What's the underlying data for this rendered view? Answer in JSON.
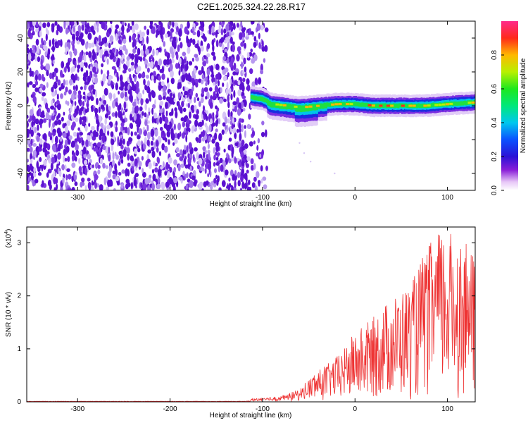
{
  "title": "C2E1.2025.324.22.28.R17",
  "colors": {
    "snr_line": "#ee3333",
    "frame": "#000000",
    "speckle_dark": "#6a1fd0",
    "speckle_light": "#c8b0f3"
  },
  "chart_data": [
    {
      "type": "heatmap",
      "name": "spectrogram",
      "xlabel": "Height of straight line (km)",
      "ylabel": "Frequency (Hz)",
      "xlim": [
        -355,
        130
      ],
      "ylim": [
        -50,
        50
      ],
      "xticks": [
        -300,
        -200,
        -100,
        0,
        100
      ],
      "yticks": [
        -40,
        -20,
        0,
        20,
        40
      ],
      "colorbar": {
        "label": "Normalized spectral amplitude",
        "range": [
          0,
          1
        ],
        "ticks": [
          "0.0",
          "0.2",
          "0.4",
          "0.6",
          "0.8"
        ],
        "colormap": "rainbow (white-magenta-blue-cyan-green-yellow-red-pink)"
      },
      "regions": [
        {
          "description": "noise speckle",
          "x_range": [
            -355,
            -95
          ],
          "freq_range": [
            -50,
            50
          ]
        },
        {
          "description": "signal band",
          "x_range": [
            -112,
            130
          ],
          "freq_range": [
            -10,
            8
          ]
        }
      ],
      "signal_centerline": [
        {
          "x": -112,
          "freq": 5
        },
        {
          "x": -100,
          "freq": 4
        },
        {
          "x": -90,
          "freq": 1
        },
        {
          "x": -75,
          "freq": 0
        },
        {
          "x": -60,
          "freq": -1
        },
        {
          "x": -40,
          "freq": 0
        },
        {
          "x": -20,
          "freq": 1
        },
        {
          "x": 0,
          "freq": 1
        },
        {
          "x": 20,
          "freq": 0
        },
        {
          "x": 50,
          "freq": 0
        },
        {
          "x": 75,
          "freq": 0
        },
        {
          "x": 100,
          "freq": 1
        },
        {
          "x": 130,
          "freq": 2
        }
      ]
    },
    {
      "type": "line",
      "name": "snr",
      "xlabel": "Height of straight line (km)",
      "ylabel": "SNR (10 * v/v)",
      "multiplier_label": "(x10",
      "multiplier_exp": "4",
      "multiplier_close": ")",
      "xlim": [
        -355,
        130
      ],
      "ylim": [
        0,
        3.3
      ],
      "xticks": [
        -300,
        -200,
        -100,
        0,
        100
      ],
      "yticks": [
        0,
        1,
        2,
        3
      ],
      "series": [
        {
          "values_unit": "x10^4",
          "envelope": [
            {
              "x": -355,
              "y": 0.01
            },
            {
              "x": -120,
              "y": 0.01
            },
            {
              "x": -90,
              "y": 0.05
            },
            {
              "x": -75,
              "y": 0.1
            },
            {
              "x": -60,
              "y": 0.2
            },
            {
              "x": -45,
              "y": 0.5
            },
            {
              "x": -30,
              "y": 0.7
            },
            {
              "x": -15,
              "y": 0.9
            },
            {
              "x": 0,
              "y": 1.3
            },
            {
              "x": 15,
              "y": 1.5
            },
            {
              "x": 30,
              "y": 1.8
            },
            {
              "x": 45,
              "y": 2.0
            },
            {
              "x": 60,
              "y": 2.2
            },
            {
              "x": 75,
              "y": 2.8
            },
            {
              "x": 90,
              "y": 3.2
            },
            {
              "x": 105,
              "y": 3.2
            },
            {
              "x": 118,
              "y": 3.0
            },
            {
              "x": 130,
              "y": 2.7
            }
          ]
        }
      ]
    }
  ]
}
